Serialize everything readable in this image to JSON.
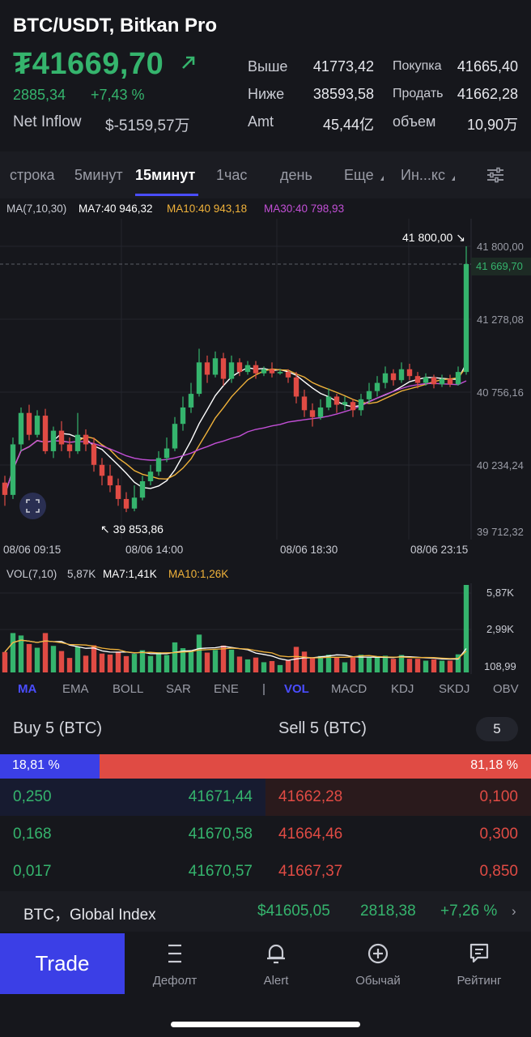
{
  "header": {
    "pair": "BTC/USDT, Bitkan Pro",
    "price": "₮41669,70",
    "change_abs": "2885,34",
    "change_pct": "+7,43 %",
    "net_inflow_label": "Net Inflow",
    "net_inflow_value": "$-5159,57万",
    "stats": [
      {
        "label": "Выше",
        "value": "41773,42"
      },
      {
        "label": "Ниже",
        "value": "38593,58"
      },
      {
        "label": "Amt",
        "value": "45,44亿"
      },
      {
        "label": "Покупка",
        "value": "41665,40"
      },
      {
        "label": "Продать",
        "value": "41662,28"
      },
      {
        "label": "объем",
        "value": "10,90万"
      }
    ]
  },
  "timeframes": {
    "items": [
      "строка",
      "5минут",
      "15минут",
      "1час",
      "день",
      "Еще",
      "Ин...кс"
    ],
    "active": "15минут"
  },
  "ma_legend": {
    "label": "MA(7,10,30)",
    "ma7": "MA7:40 946,32",
    "ma10": "MA10:40 943,18",
    "ma30": "MA30:40 798,93"
  },
  "chart": {
    "y_ticks": [
      "41 800,00",
      "41 278,08",
      "40 756,16",
      "40 234,24",
      "39 712,32"
    ],
    "x_ticks": [
      "08/06 09:15",
      "08/06 14:00",
      "08/06 18:30",
      "08/06 23:15"
    ],
    "current_price": "41 669,70",
    "high_label": "41 800,00",
    "low_label": "39 853,86"
  },
  "volume": {
    "label": "VOL(7,10)",
    "value": "5,87K",
    "ma7": "MA7:1,41K",
    "ma10": "MA10:1,26K",
    "y_ticks": [
      "5,87K",
      "2,99K",
      "108,99"
    ]
  },
  "indicators": {
    "main": [
      "MA",
      "EMA",
      "BOLL",
      "SAR",
      "ENE"
    ],
    "sub": [
      "VOL",
      "MACD",
      "KDJ",
      "SKDJ",
      "OBV"
    ],
    "active_main": "MA",
    "active_sub": "VOL"
  },
  "orderbook": {
    "buy_title": "Buy 5 (BTC)",
    "sell_title": "Sell 5 (BTC)",
    "depth": "5",
    "buy_pct": "18,81 %",
    "sell_pct": "81,18 %",
    "rows": [
      {
        "buy_qty": "0,250",
        "buy_price": "41671,44",
        "sell_price": "41662,28",
        "sell_qty": "0,100"
      },
      {
        "buy_qty": "0,168",
        "buy_price": "41670,58",
        "sell_price": "41664,46",
        "sell_qty": "0,300"
      },
      {
        "buy_qty": "0,017",
        "buy_price": "41670,57",
        "sell_price": "41667,37",
        "sell_qty": "0,850"
      }
    ]
  },
  "global_index": {
    "label": "BTC，Global Index",
    "price": "$41605,05",
    "change_abs": "2818,38",
    "change_pct": "+7,26 %"
  },
  "nav": {
    "trade": "Trade",
    "items": [
      {
        "label": "Дефолт",
        "icon": "list-icon"
      },
      {
        "label": "Alert",
        "icon": "bell-icon"
      },
      {
        "label": "Обычай",
        "icon": "plus-circle-icon"
      },
      {
        "label": "Рейтинг",
        "icon": "chat-icon"
      }
    ]
  },
  "colors": {
    "up": "#35b46d",
    "down": "#e04b44",
    "accent": "#4a4dff",
    "ma7": "#ffffff",
    "ma10": "#f0b23a",
    "ma30": "#c24fd6"
  },
  "chart_data": {
    "type": "candlestick",
    "interval": "15минут",
    "price_axis": [
      39712.32,
      41800.0
    ],
    "series": [
      {
        "name": "MA7",
        "value": 40946.32
      },
      {
        "name": "MA10",
        "value": 40943.18
      },
      {
        "name": "MA30",
        "value": 40798.93
      }
    ],
    "candles": [
      [
        40070,
        39980,
        40120,
        39900
      ],
      [
        39980,
        40350,
        40400,
        39950
      ],
      [
        40350,
        40580,
        40620,
        40300
      ],
      [
        40580,
        40420,
        40640,
        40380
      ],
      [
        40420,
        40560,
        40600,
        40400
      ],
      [
        40560,
        40300,
        40610,
        40280
      ],
      [
        40300,
        40450,
        40480,
        40250
      ],
      [
        40450,
        40350,
        40520,
        40300
      ],
      [
        40350,
        40300,
        40400,
        40250
      ],
      [
        40300,
        40420,
        40580,
        40280
      ],
      [
        40420,
        40350,
        40460,
        40300
      ],
      [
        40350,
        40200,
        40400,
        40150
      ],
      [
        40200,
        40120,
        40250,
        40050
      ],
      [
        40120,
        40050,
        40200,
        40000
      ],
      [
        40050,
        39950,
        40100,
        39900
      ],
      [
        39950,
        39880,
        40000,
        39853.86
      ],
      [
        39880,
        39960,
        40050,
        39860
      ],
      [
        39960,
        40080,
        40120,
        39940
      ],
      [
        40080,
        40150,
        40200,
        40050
      ],
      [
        40150,
        40250,
        40300,
        40120
      ],
      [
        40250,
        40320,
        40400,
        40220
      ],
      [
        40320,
        40500,
        40550,
        40300
      ],
      [
        40500,
        40620,
        40700,
        40450
      ],
      [
        40620,
        40720,
        40800,
        40580
      ],
      [
        40720,
        40950,
        41050,
        40700
      ],
      [
        40950,
        40860,
        41000,
        40800
      ],
      [
        40860,
        40980,
        41030,
        40840
      ],
      [
        40980,
        40830,
        41020,
        40780
      ],
      [
        40830,
        40950,
        41000,
        40800
      ],
      [
        40950,
        40880,
        40980,
        40850
      ],
      [
        40880,
        40930,
        40960,
        40860
      ],
      [
        40930,
        40870,
        40960,
        40830
      ],
      [
        40870,
        40900,
        40920,
        40850
      ],
      [
        40900,
        40870,
        40950,
        40840
      ],
      [
        40870,
        40880,
        40900,
        40860
      ],
      [
        40880,
        40840,
        40900,
        40800
      ],
      [
        40840,
        40700,
        40880,
        40650
      ],
      [
        40700,
        40600,
        40750,
        40550
      ],
      [
        40600,
        40550,
        40650,
        40480
      ],
      [
        40550,
        40620,
        40680,
        40530
      ],
      [
        40620,
        40700,
        40760,
        40600
      ],
      [
        40700,
        40640,
        40720,
        40580
      ],
      [
        40640,
        40660,
        40700,
        40600
      ],
      [
        40660,
        40600,
        40680,
        40550
      ],
      [
        40600,
        40680,
        40720,
        40560
      ],
      [
        40680,
        40740,
        40800,
        40650
      ],
      [
        40740,
        40800,
        40850,
        40700
      ],
      [
        40800,
        40870,
        40920,
        40760
      ],
      [
        40870,
        40820,
        40900,
        40780
      ],
      [
        40820,
        40900,
        40950,
        40800
      ],
      [
        40900,
        40850,
        40940,
        40820
      ],
      [
        40850,
        40800,
        40880,
        40760
      ],
      [
        40800,
        40840,
        40870,
        40780
      ],
      [
        40840,
        40790,
        40860,
        40760
      ],
      [
        40790,
        40830,
        40860,
        40770
      ],
      [
        40830,
        40790,
        40860,
        40770
      ],
      [
        40790,
        40880,
        40920,
        40780
      ],
      [
        40880,
        41669.7,
        41800,
        40860
      ]
    ],
    "volume_max": "5,87K"
  }
}
